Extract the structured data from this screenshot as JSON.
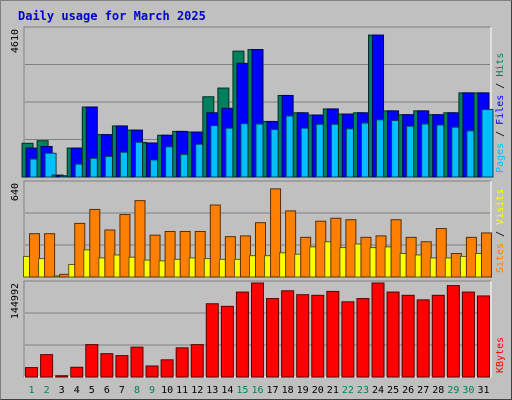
{
  "chart_data": {
    "title": "Daily usage for March 2025",
    "days": [
      "1",
      "2",
      "3",
      "4",
      "5",
      "6",
      "7",
      "8",
      "9",
      "10",
      "11",
      "12",
      "13",
      "14",
      "15",
      "16",
      "17",
      "18",
      "19",
      "20",
      "21",
      "22",
      "23",
      "24",
      "25",
      "26",
      "27",
      "28",
      "29",
      "30",
      "31"
    ],
    "weekend_days": [
      "1",
      "2",
      "8",
      "9",
      "15",
      "16",
      "22",
      "23",
      "29",
      "30"
    ],
    "panels": [
      {
        "name": "hits-files-pages",
        "type": "bar",
        "ymax_label": "4610",
        "ylim": [
          0,
          4610
        ],
        "series": [
          {
            "name": "Hits",
            "color": "#00805c",
            "values": [
              1050,
              1130,
              60,
              900,
              2180,
              1320,
              1590,
              1460,
              1060,
              1300,
              1420,
              1400,
              2500,
              2770,
              3920,
              3970,
              1730,
              2540,
              2000,
              1930,
              2120,
              1960,
              2000,
              4420,
              2060,
              1940,
              2060,
              1940,
              2000,
              2620,
              2620
            ]
          },
          {
            "name": "Files",
            "color": "#0000ff",
            "values": [
              900,
              950,
              40,
              900,
              2180,
              1320,
              1590,
              1460,
              1060,
              1300,
              1420,
              1400,
              2000,
              2140,
              3540,
              3970,
              1730,
              2540,
              2000,
              1930,
              2120,
              1960,
              2000,
              4420,
              2060,
              1940,
              2060,
              1940,
              2000,
              2620,
              2620
            ]
          },
          {
            "name": "Pages",
            "color": "#00c0ff",
            "values": [
              560,
              740,
              20,
              400,
              580,
              640,
              770,
              1080,
              530,
              940,
              700,
              1020,
              1600,
              1520,
              1660,
              1650,
              1480,
              1900,
              1520,
              1640,
              1640,
              1500,
              1680,
              1780,
              1760,
              1580,
              1650,
              1620,
              1550,
              1440,
              2100
            ]
          }
        ]
      },
      {
        "name": "visits-sites",
        "type": "bar",
        "ymax_label": "640",
        "ylim": [
          0,
          640
        ],
        "series": [
          {
            "name": "Visits",
            "color": "#ffff00",
            "values": [
              140,
              125,
              6,
              85,
              185,
              130,
              150,
              135,
              115,
              110,
              120,
              130,
              125,
              120,
              120,
              145,
              145,
              165,
              155,
              205,
              240,
              200,
              225,
              200,
              205,
              160,
              150,
              130,
              130,
              140,
              160
            ]
          },
          {
            "name": "Sites",
            "color": "#ff8000",
            "values": [
              295,
              295,
              18,
              365,
              460,
              320,
              425,
              520,
              285,
              310,
              310,
              310,
              490,
              275,
              280,
              370,
              600,
              450,
              270,
              380,
              400,
              390,
              270,
              280,
              390,
              270,
              240,
              330,
              160,
              270,
              300
            ]
          }
        ]
      },
      {
        "name": "kbytes",
        "type": "bar",
        "ymax_label": "144992",
        "ylim": [
          0,
          144992
        ],
        "series": [
          {
            "name": "KBytes",
            "color": "#ff0000",
            "values": [
              14500,
              34500,
              2000,
              15000,
              50000,
              36000,
              33000,
              46000,
              17000,
              26500,
              45000,
              50000,
              113000,
              109000,
              131000,
              149000,
              121000,
              133000,
              127000,
              126000,
              132000,
              116000,
              121000,
              152000,
              131000,
              126000,
              119000,
              126000,
              141000,
              131000,
              125000
            ]
          }
        ]
      }
    ]
  },
  "colors": {
    "background": "#c0c0c0",
    "plot_bg": "#c0c0c0",
    "gridline": "#808080",
    "title": "#0000cc",
    "xlabel_weekday": "#000000",
    "xlabel_weekend": "#00805c"
  }
}
